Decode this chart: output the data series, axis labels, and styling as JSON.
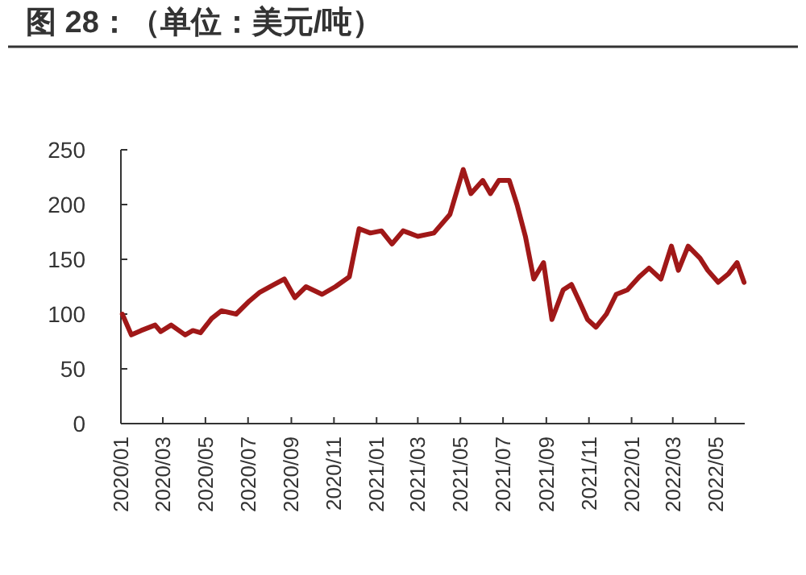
{
  "chart_data": {
    "type": "line",
    "title": "图 28：（单位：美元/吨）",
    "x": [
      "2020-01-03",
      "2020-01-16",
      "2020-01-30",
      "2020-02-19",
      "2020-02-27",
      "2020-03-13",
      "2020-04-02",
      "2020-04-13",
      "2020-04-24",
      "2020-05-10",
      "2020-05-24",
      "2020-06-14",
      "2020-07-03",
      "2020-07-18",
      "2020-08-07",
      "2020-08-22",
      "2020-09-06",
      "2020-09-22",
      "2020-10-15",
      "2020-11-03",
      "2020-11-23",
      "2020-12-07",
      "2020-12-23",
      "2021-01-08",
      "2021-01-23",
      "2021-02-08",
      "2021-03-01",
      "2021-03-24",
      "2021-04-16",
      "2021-05-05",
      "2021-05-16",
      "2021-06-02",
      "2021-06-13",
      "2021-06-25",
      "2021-07-10",
      "2021-07-21",
      "2021-08-02",
      "2021-08-14",
      "2021-08-28",
      "2021-09-09",
      "2021-09-25",
      "2021-10-07",
      "2021-10-18",
      "2021-10-30",
      "2021-11-11",
      "2021-11-26",
      "2021-12-10",
      "2021-12-26",
      "2022-01-12",
      "2022-01-26",
      "2022-02-12",
      "2022-02-27",
      "2022-03-09",
      "2022-03-23",
      "2022-04-09",
      "2022-04-20",
      "2022-05-05",
      "2022-05-20",
      "2022-06-01",
      "2022-06-11"
    ],
    "series": [
      {
        "color": "#a01818",
        "values": [
          100,
          81,
          85,
          90,
          84,
          90,
          81,
          85,
          83,
          96,
          103,
          100,
          112,
          120,
          127,
          132,
          115,
          125,
          118,
          125,
          134,
          178,
          174,
          176,
          164,
          176,
          171,
          174,
          191,
          232,
          210,
          222,
          210,
          222,
          222,
          200,
          171,
          132,
          147,
          95,
          122,
          127,
          112,
          95,
          88,
          100,
          118,
          122,
          134,
          142,
          132,
          162,
          140,
          162,
          151,
          140,
          129,
          137,
          147,
          129
        ]
      }
    ],
    "xlim": [
      "2020-01-01",
      "2022-06-12"
    ],
    "xticks": [
      {
        "value": "2020-01",
        "label": "2020/01"
      },
      {
        "value": "2020-03",
        "label": "2020/03"
      },
      {
        "value": "2020-05",
        "label": "2020/05"
      },
      {
        "value": "2020-07",
        "label": "2020/07"
      },
      {
        "value": "2020-09",
        "label": "2020/09"
      },
      {
        "value": "2020-11",
        "label": "2020/11"
      },
      {
        "value": "2021-01",
        "label": "2021/01"
      },
      {
        "value": "2021-03",
        "label": "2021/03"
      },
      {
        "value": "2021-05",
        "label": "2021/05"
      },
      {
        "value": "2021-07",
        "label": "2021/07"
      },
      {
        "value": "2021-09",
        "label": "2021/09"
      },
      {
        "value": "2021-11",
        "label": "2021/11"
      },
      {
        "value": "2022-01",
        "label": "2022/01"
      },
      {
        "value": "2022-03",
        "label": "2022/03"
      },
      {
        "value": "2022-05",
        "label": "2022/05"
      }
    ],
    "ylim": [
      0,
      250
    ],
    "yticks": [
      0,
      50,
      100,
      150,
      200,
      250
    ]
  }
}
